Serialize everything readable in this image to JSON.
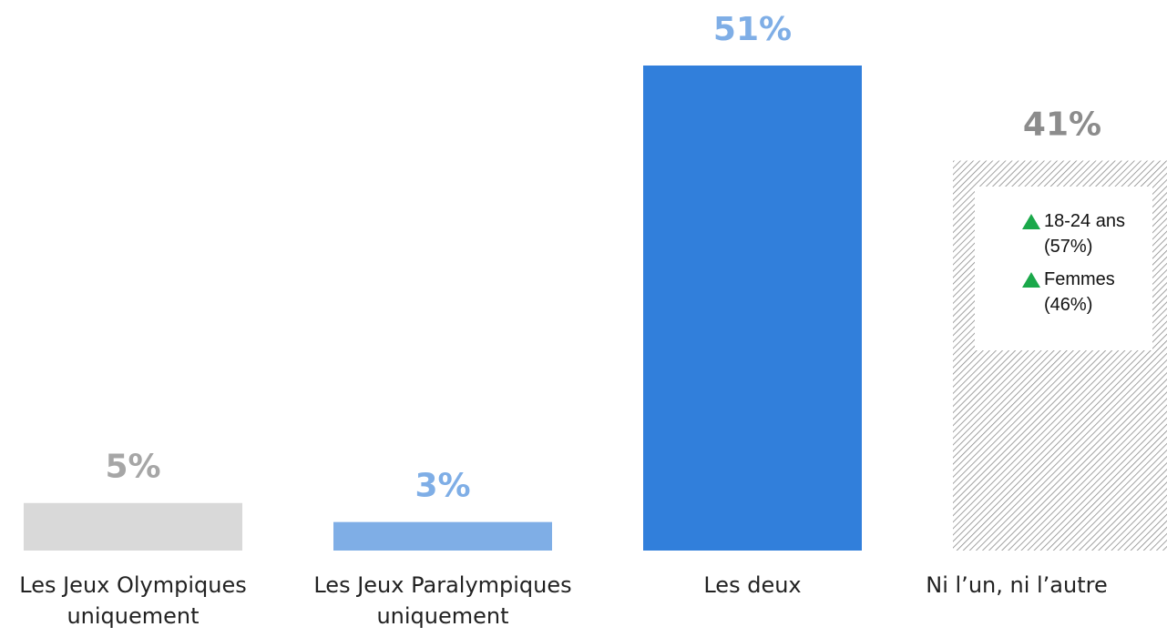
{
  "chart_data": {
    "type": "bar",
    "categories": [
      "Les Jeux Olympiques uniquement",
      "Les Jeux Paralympiques uniquement",
      "Les deux",
      "Ni l’un, ni l’autre"
    ],
    "values": [
      5,
      3,
      51,
      41
    ],
    "value_labels": [
      "5%",
      "3%",
      "51%",
      "41%"
    ],
    "colors": [
      "#d9d9d9",
      "#7faee6",
      "#317fdb",
      "#8a8a8a"
    ],
    "hatched": [
      false,
      false,
      false,
      true
    ],
    "label_colors": [
      "#a6a6a6",
      "#7faee6",
      "#7faee6",
      "#8c8c8c"
    ],
    "annotations": [
      "18-24 ans (57%)",
      "Femmes (46%)"
    ]
  }
}
